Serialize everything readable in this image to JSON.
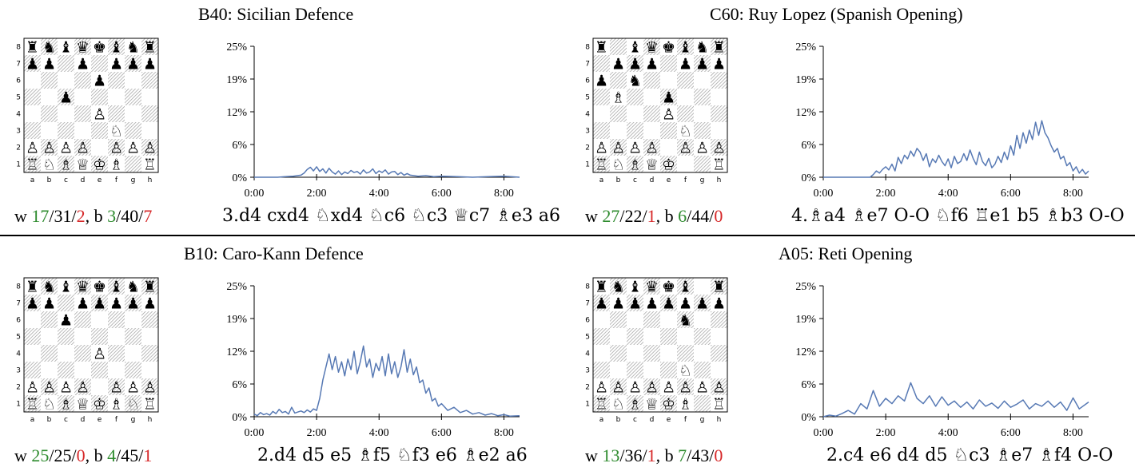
{
  "colors": {
    "line": "#5779b4",
    "good": "#2e8b2e",
    "bad": "#d62728",
    "dark_square": "#9e9e9e"
  },
  "files": [
    "a",
    "b",
    "c",
    "d",
    "e",
    "f",
    "g",
    "h"
  ],
  "ranks": [
    "8",
    "7",
    "6",
    "5",
    "4",
    "3",
    "2",
    "1"
  ],
  "panels": [
    {
      "title": "B40:  Sicilian Defence",
      "board": [
        "rnbqkbnr",
        "pp.p.ppp",
        "....p...",
        "..p.....",
        "....P...",
        ".....N..",
        "PPPP.PPP",
        "RNBQKB.R"
      ],
      "stats": {
        "w_prefix": "w ",
        "w1": "17",
        "w2": "31",
        "w3": "2",
        "mid": ", b ",
        "b1": "3",
        "b2": "40",
        "b3": "7"
      },
      "moves": "3.d4 cxd4 ♘xd4 ♘c6 ♘c3 ♕c7 ♗e3 a6"
    },
    {
      "title": "C60:  Ruy Lopez (Spanish Opening)",
      "board": [
        "r.bqkbnr",
        ".ppp.ppp",
        "p.n.....",
        ".B..p...",
        "....P...",
        ".....N..",
        "PPPP.PPP",
        "RNBQK..R"
      ],
      "stats": {
        "w_prefix": "w ",
        "w1": "27",
        "w2": "22",
        "w3": "1",
        "mid": ", b ",
        "b1": "6",
        "b2": "44",
        "b3": "0"
      },
      "moves": "4.♗a4 ♗e7 O-O ♘f6 ♖e1 b5 ♗b3 O-O"
    },
    {
      "title": "B10:  Caro-Kann Defence",
      "board": [
        "rnbqkbnr",
        "pp.ppppp",
        "..p.....",
        "........",
        "....P...",
        "........",
        "PPPP.PPP",
        "RNBQKBNR"
      ],
      "stats": {
        "w_prefix": "w ",
        "w1": "25",
        "w2": "25",
        "w3": "0",
        "mid": ", b ",
        "b1": "4",
        "b2": "45",
        "b3": "1"
      },
      "moves": "2.d4 d5 e5 ♗f5 ♘f3 e6 ♗e2 a6"
    },
    {
      "title": "A05:  Reti Opening",
      "board": [
        "rnbqkb.r",
        "pppppppp",
        ".....n..",
        "........",
        "........",
        ".....N..",
        "PPPPPPPP",
        "RNBQKB.R"
      ],
      "stats": {
        "w_prefix": "w ",
        "w1": "13",
        "w2": "36",
        "w3": "1",
        "mid": ", b ",
        "b1": "7",
        "b2": "43",
        "b3": "0"
      },
      "moves": "2.c4 e6 d4 d5 ♘c3 ♗e7 ♗f4 O-O"
    }
  ],
  "chart_data": [
    {
      "type": "line",
      "xlabel": "",
      "ylabel": "",
      "xlim": [
        0,
        8.5
      ],
      "ylim": [
        0,
        25
      ],
      "x_ticks": [
        "0:00",
        "2:00",
        "4:00",
        "6:00",
        "8:00"
      ],
      "y_ticks": [
        "0%",
        "6%",
        "12%",
        "19%",
        "25%"
      ],
      "x": [
        0,
        0.25,
        0.5,
        0.75,
        1.0,
        1.25,
        1.5,
        1.6,
        1.7,
        1.8,
        1.9,
        2.0,
        2.1,
        2.2,
        2.3,
        2.4,
        2.5,
        2.6,
        2.7,
        2.8,
        2.9,
        3.0,
        3.1,
        3.2,
        3.3,
        3.4,
        3.5,
        3.6,
        3.7,
        3.8,
        3.9,
        4.0,
        4.1,
        4.2,
        4.3,
        4.4,
        4.5,
        4.6,
        4.7,
        4.8,
        4.9,
        5.0,
        5.25,
        5.5,
        5.75,
        6.0,
        6.5,
        7.0,
        7.5,
        8.0,
        8.5
      ],
      "series": [
        {
          "values": [
            0,
            0,
            0,
            0,
            0.1,
            0.2,
            0.4,
            0.8,
            1.5,
            1.9,
            1.2,
            2.0,
            1.1,
            1.6,
            0.8,
            1.7,
            1.0,
            0.6,
            1.2,
            0.5,
            1.0,
            0.7,
            1.3,
            0.9,
            1.1,
            0.6,
            1.4,
            0.8,
            1.0,
            1.6,
            0.7,
            1.2,
            0.9,
            1.4,
            0.6,
            1.0,
            1.1,
            0.5,
            0.9,
            0.4,
            0.7,
            0.4,
            0.2,
            0.3,
            0.1,
            0.2,
            0.1,
            0,
            0.1,
            0.2,
            0
          ]
        }
      ]
    },
    {
      "type": "line",
      "xlabel": "",
      "ylabel": "",
      "xlim": [
        0,
        8.5
      ],
      "ylim": [
        0,
        25
      ],
      "x_ticks": [
        "0:00",
        "2:00",
        "4:00",
        "6:00",
        "8:00"
      ],
      "y_ticks": [
        "0%",
        "6%",
        "12%",
        "19%",
        "25%"
      ],
      "x": [
        0,
        0.5,
        1.0,
        1.5,
        1.6,
        1.7,
        1.8,
        1.9,
        2.0,
        2.1,
        2.2,
        2.3,
        2.4,
        2.5,
        2.6,
        2.7,
        2.8,
        2.9,
        3.0,
        3.1,
        3.2,
        3.3,
        3.4,
        3.5,
        3.6,
        3.7,
        3.8,
        3.9,
        4.0,
        4.1,
        4.2,
        4.3,
        4.4,
        4.5,
        4.6,
        4.7,
        4.8,
        4.9,
        5.0,
        5.1,
        5.2,
        5.3,
        5.4,
        5.5,
        5.6,
        5.7,
        5.8,
        5.9,
        6.0,
        6.1,
        6.2,
        6.3,
        6.4,
        6.5,
        6.6,
        6.7,
        6.8,
        6.9,
        7.0,
        7.1,
        7.2,
        7.3,
        7.4,
        7.5,
        7.6,
        7.7,
        7.8,
        7.9,
        8.0,
        8.1,
        8.2,
        8.3,
        8.4,
        8.5
      ],
      "series": [
        {
          "values": [
            0,
            0,
            0,
            0,
            0.5,
            1.2,
            0.8,
            1.5,
            2.0,
            1.4,
            2.5,
            1.2,
            3.8,
            2.6,
            4.2,
            3.5,
            5.0,
            4.0,
            5.5,
            4.8,
            3.2,
            4.5,
            2.0,
            3.5,
            2.8,
            4.2,
            3.0,
            2.2,
            3.5,
            1.8,
            4.0,
            2.6,
            3.0,
            4.5,
            3.2,
            5.2,
            3.6,
            2.4,
            4.8,
            3.0,
            2.2,
            3.6,
            1.8,
            2.5,
            4.0,
            2.8,
            4.8,
            3.4,
            6.0,
            4.2,
            8.0,
            5.5,
            8.5,
            6.5,
            9.0,
            7.2,
            10.5,
            8.0,
            10.8,
            8.5,
            7.5,
            6.0,
            4.8,
            5.5,
            3.5,
            4.0,
            2.2,
            2.8,
            1.2,
            2.0,
            0.8,
            1.5,
            0.6,
            1.2
          ]
        }
      ]
    },
    {
      "type": "line",
      "xlabel": "",
      "ylabel": "",
      "xlim": [
        0,
        8.5
      ],
      "ylim": [
        0,
        25
      ],
      "x_ticks": [
        "0:00",
        "2:00",
        "4:00",
        "6:00",
        "8:00"
      ],
      "y_ticks": [
        "0%",
        "6%",
        "12%",
        "19%",
        "25%"
      ],
      "x": [
        0,
        0.1,
        0.2,
        0.3,
        0.4,
        0.5,
        0.6,
        0.7,
        0.8,
        0.9,
        1.0,
        1.1,
        1.2,
        1.3,
        1.4,
        1.5,
        1.6,
        1.7,
        1.8,
        1.9,
        2.0,
        2.1,
        2.2,
        2.3,
        2.4,
        2.5,
        2.6,
        2.7,
        2.8,
        2.9,
        3.0,
        3.1,
        3.2,
        3.3,
        3.4,
        3.5,
        3.6,
        3.7,
        3.8,
        3.9,
        4.0,
        4.1,
        4.2,
        4.3,
        4.4,
        4.5,
        4.6,
        4.7,
        4.8,
        4.9,
        5.0,
        5.1,
        5.2,
        5.3,
        5.4,
        5.5,
        5.6,
        5.7,
        5.8,
        5.9,
        6.0,
        6.2,
        6.4,
        6.6,
        6.8,
        7.0,
        7.2,
        7.4,
        7.6,
        7.8,
        8.0,
        8.2,
        8.5
      ],
      "series": [
        {
          "values": [
            0.5,
            0.2,
            0.8,
            0.4,
            0.6,
            0.3,
            1.0,
            0.6,
            1.4,
            0.8,
            1.0,
            0.5,
            1.8,
            0.7,
            0.9,
            1.1,
            0.8,
            1.3,
            0.9,
            1.5,
            1.2,
            3.5,
            7.0,
            9.5,
            12.0,
            9.0,
            11.5,
            8.5,
            10.5,
            7.8,
            11.0,
            9.0,
            12.5,
            8.2,
            10.5,
            13.5,
            9.5,
            11.0,
            7.5,
            10.2,
            8.8,
            11.5,
            7.8,
            12.0,
            8.2,
            10.5,
            7.5,
            9.5,
            12.8,
            8.5,
            11.0,
            8.0,
            9.5,
            6.5,
            7.0,
            4.5,
            5.5,
            3.0,
            3.5,
            2.0,
            2.5,
            1.2,
            1.8,
            0.8,
            1.2,
            0.5,
            0.8,
            0.3,
            0.6,
            0.2,
            0.4,
            0.1,
            0.2
          ]
        }
      ]
    },
    {
      "type": "line",
      "xlabel": "",
      "ylabel": "",
      "xlim": [
        0,
        8.5
      ],
      "ylim": [
        0,
        25
      ],
      "x_ticks": [
        "0:00",
        "2:00",
        "4:00",
        "6:00",
        "8:00"
      ],
      "y_ticks": [
        "0%",
        "6%",
        "12%",
        "19%",
        "25%"
      ],
      "x": [
        0,
        0.2,
        0.4,
        0.6,
        0.8,
        1.0,
        1.2,
        1.4,
        1.6,
        1.8,
        2.0,
        2.2,
        2.4,
        2.6,
        2.8,
        3.0,
        3.2,
        3.4,
        3.6,
        3.8,
        4.0,
        4.2,
        4.4,
        4.6,
        4.8,
        5.0,
        5.2,
        5.4,
        5.6,
        5.8,
        6.0,
        6.2,
        6.4,
        6.6,
        6.8,
        7.0,
        7.2,
        7.4,
        7.6,
        7.8,
        8.0,
        8.2,
        8.5
      ],
      "series": [
        {
          "values": [
            0,
            0.3,
            0.1,
            0.6,
            1.2,
            0.5,
            2.5,
            1.5,
            5.0,
            2.0,
            3.5,
            2.5,
            4.0,
            3.0,
            6.5,
            3.5,
            2.5,
            4.0,
            2.0,
            3.8,
            2.2,
            3.0,
            1.8,
            2.8,
            1.5,
            3.2,
            2.0,
            2.6,
            1.6,
            3.0,
            1.8,
            2.4,
            3.2,
            1.5,
            2.5,
            2.0,
            3.0,
            1.8,
            2.8,
            1.2,
            3.6,
            1.5,
            2.8
          ]
        }
      ]
    }
  ]
}
